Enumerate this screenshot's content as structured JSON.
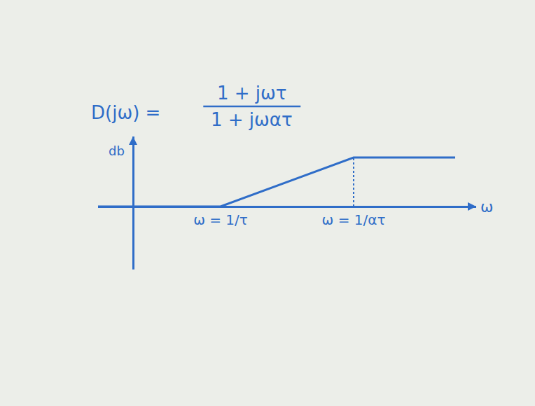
{
  "chart_data": {
    "type": "line",
    "equation": {
      "lhs": "D(jω) =",
      "numerator": "1 + jωτ",
      "denominator": "1 + jωατ"
    },
    "xlabel": "ω",
    "ylabel": "db",
    "x": [
      -1,
      2.5,
      6.3,
      9.2
    ],
    "values": [
      0,
      0,
      1.4,
      1.4
    ],
    "color": "#2f6dc8",
    "xlim": [
      -1,
      9.8
    ],
    "ylim": [
      -1.8,
      2.0
    ],
    "xticks": [
      {
        "value": 2.5,
        "label": "ω = 1/τ"
      },
      {
        "value": 6.3,
        "label": "ω = 1/ατ"
      }
    ],
    "tick_labels": "x",
    "grid": false,
    "line_style": "solid"
  }
}
